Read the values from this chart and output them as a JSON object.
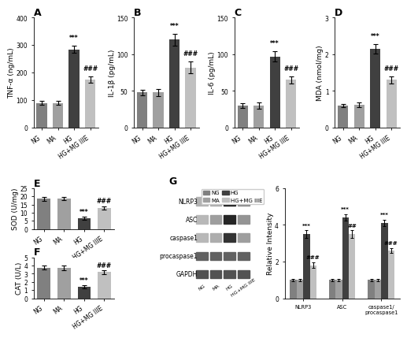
{
  "panel_A": {
    "title": "A",
    "ylabel": "TNF-α (ng/mL)",
    "categories": [
      "NG",
      "MA",
      "HG",
      "HG+MG IIIE"
    ],
    "values": [
      90,
      90,
      285,
      175
    ],
    "errors": [
      8,
      8,
      12,
      12
    ],
    "ylim": [
      0,
      400
    ],
    "yticks": [
      0,
      100,
      200,
      300,
      400
    ],
    "colors": [
      "#808080",
      "#a0a0a0",
      "#404040",
      "#c0c0c0"
    ],
    "sig_above": {
      "HG": "***",
      "HG+MG IIIE": "###"
    }
  },
  "panel_B": {
    "title": "B",
    "ylabel": "IL-1β (pg/mL)",
    "categories": [
      "NG",
      "MA",
      "HG",
      "HG+MG IIIE"
    ],
    "values": [
      48,
      48,
      120,
      82
    ],
    "errors": [
      4,
      5,
      8,
      8
    ],
    "ylim": [
      0,
      150
    ],
    "yticks": [
      0,
      50,
      100,
      150
    ],
    "colors": [
      "#808080",
      "#a0a0a0",
      "#404040",
      "#c0c0c0"
    ],
    "sig_above": {
      "HG": "***",
      "HG+MG IIIE": "###"
    }
  },
  "panel_C": {
    "title": "C",
    "ylabel": "IL-6 (pg/mL)",
    "categories": [
      "NG",
      "MA",
      "HG",
      "HG+MG IIIE"
    ],
    "values": [
      30,
      30,
      97,
      65
    ],
    "errors": [
      3,
      4,
      7,
      5
    ],
    "ylim": [
      0,
      150
    ],
    "yticks": [
      0,
      50,
      100,
      150
    ],
    "colors": [
      "#808080",
      "#a0a0a0",
      "#404040",
      "#c0c0c0"
    ],
    "sig_above": {
      "HG": "***",
      "HG+MG IIIE": "###"
    }
  },
  "panel_D": {
    "title": "D",
    "ylabel": "MDA (nmol/mg)",
    "categories": [
      "NG",
      "MA",
      "HG",
      "HG+MG IIIE"
    ],
    "values": [
      0.6,
      0.62,
      2.15,
      1.3
    ],
    "errors": [
      0.05,
      0.06,
      0.12,
      0.1
    ],
    "ylim": [
      0,
      3
    ],
    "yticks": [
      0,
      1,
      2,
      3
    ],
    "colors": [
      "#808080",
      "#a0a0a0",
      "#404040",
      "#c0c0c0"
    ],
    "sig_above": {
      "HG": "***",
      "HG+MG IIIE": "###"
    }
  },
  "panel_E": {
    "title": "E",
    "ylabel": "SOD (U/mg)",
    "categories": [
      "NG",
      "MA",
      "HG",
      "HG+MG IIIE"
    ],
    "values": [
      18.5,
      18.5,
      6.5,
      13.0
    ],
    "errors": [
      1.2,
      1.0,
      0.8,
      1.0
    ],
    "ylim": [
      0,
      25
    ],
    "yticks": [
      0,
      5,
      10,
      15,
      20,
      25
    ],
    "colors": [
      "#808080",
      "#a0a0a0",
      "#404040",
      "#c0c0c0"
    ],
    "sig_above": {
      "HG": "***",
      "HG+MG IIIE": "###"
    }
  },
  "panel_F": {
    "title": "F",
    "ylabel": "CAT (U/L)",
    "categories": [
      "NG",
      "MA",
      "HG",
      "HG+MG IIIE"
    ],
    "values": [
      3.75,
      3.75,
      1.4,
      3.2
    ],
    "errors": [
      0.25,
      0.3,
      0.18,
      0.22
    ],
    "ylim": [
      0,
      5
    ],
    "yticks": [
      0,
      1,
      2,
      3,
      4,
      5
    ],
    "colors": [
      "#808080",
      "#a0a0a0",
      "#404040",
      "#c0c0c0"
    ],
    "sig_above": {
      "HG": "***",
      "HG+MG IIIE": "###"
    }
  },
  "panel_G_bar": {
    "ylabel": "Relative Intensity",
    "categories": [
      "NLRP3",
      "ASC",
      "caspase1/\nprocaspase1"
    ],
    "groups": [
      "NG",
      "MA",
      "HG",
      "HG+MG IIIE"
    ],
    "values": [
      [
        1.0,
        1.0,
        3.5,
        1.8
      ],
      [
        1.0,
        1.0,
        4.4,
        3.5
      ],
      [
        1.0,
        1.0,
        4.1,
        2.6
      ]
    ],
    "errors": [
      [
        0.06,
        0.06,
        0.2,
        0.15
      ],
      [
        0.06,
        0.06,
        0.18,
        0.2
      ],
      [
        0.06,
        0.06,
        0.18,
        0.15
      ]
    ],
    "ylim": [
      0,
      6
    ],
    "yticks": [
      0,
      2,
      4,
      6
    ],
    "colors": [
      "#808080",
      "#a0a0a0",
      "#404040",
      "#c0c0c0"
    ],
    "sig_HG": {
      "NLRP3": "***",
      "ASC": "***",
      "caspase1/\nprocaspase1": "***"
    },
    "sig_HGMG": {
      "NLRP3": "###",
      "ASC": "##",
      "caspase1/\nprocaspase1": "###"
    }
  },
  "blot": {
    "labels": [
      "NLRP3",
      "ASC",
      "caspase1",
      "procaspase1",
      "GAPDH"
    ],
    "x_labels": [
      "NG",
      "MA",
      "HG",
      "HG+MG IIIE"
    ],
    "intensities": {
      "NLRP3": [
        0.3,
        0.32,
        0.9,
        0.45
      ],
      "ASC": [
        0.28,
        0.38,
        0.85,
        0.42
      ],
      "caspase1": [
        0.28,
        0.32,
        0.8,
        0.38
      ],
      "procaspase1": [
        0.62,
        0.62,
        0.62,
        0.62
      ],
      "GAPDH": [
        0.68,
        0.68,
        0.68,
        0.68
      ]
    }
  },
  "legend": {
    "labels": [
      "NG",
      "MA",
      "HG",
      "HG+MG IIIE"
    ],
    "colors": [
      "#808080",
      "#a0a0a0",
      "#404040",
      "#c0c0c0"
    ]
  },
  "background_color": "#ffffff",
  "tick_label_fontsize": 5.5,
  "axis_label_fontsize": 6.5,
  "title_fontsize": 9,
  "sig_fontsize": 5.5
}
